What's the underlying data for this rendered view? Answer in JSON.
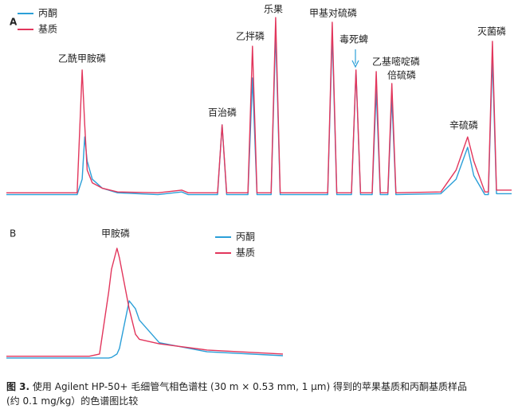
{
  "chart_data": [
    {
      "type": "line",
      "panel": "A",
      "annotations": [
        "乙酰甲胺磷",
        "百治磷",
        "乙拌磷",
        "乐果",
        "甲基对硫磷",
        "毒死蜱",
        "乙基嘧啶磷",
        "倍硫磷",
        "辛硫磷",
        "灭菌磷"
      ],
      "xlim": [
        0,
        100
      ],
      "ylim": [
        0,
        100
      ],
      "x": [
        0,
        14,
        15,
        15.5,
        16,
        17,
        19,
        22,
        30,
        34.7,
        36,
        41.8,
        42.7,
        43.6,
        47.8,
        48.7,
        49.6,
        52.4,
        53.3,
        54.2,
        63.6,
        64.5,
        65.4,
        68.3,
        69.2,
        70.1,
        72.4,
        73.2,
        74,
        75.5,
        76.3,
        77.1,
        86,
        89,
        91.3,
        92.5,
        94.7,
        95.4,
        96.2,
        97,
        100
      ],
      "series": [
        {
          "name": "丙酮",
          "color": "#2b9fd8",
          "values": [
            1.5,
            1.5,
            10,
            33.3,
            20,
            10,
            5,
            2.5,
            1.5,
            3,
            1.5,
            1.5,
            39.9,
            1.5,
            1.5,
            65.8,
            1.5,
            1.5,
            91.2,
            1.5,
            1.5,
            90.4,
            1.5,
            1.5,
            69.3,
            1.5,
            1.5,
            59.2,
            1.5,
            1.5,
            54.8,
            1.5,
            2,
            10,
            27.6,
            12,
            1.5,
            1.5,
            77.2,
            2,
            2
          ]
        },
        {
          "name": "基质",
          "color": "#e2365c",
          "values": [
            2.5,
            2.5,
            70.2,
            40,
            15,
            8,
            5,
            3,
            2.5,
            4,
            2.5,
            2.5,
            39.9,
            2.5,
            2.5,
            83.3,
            2.5,
            2.5,
            99.1,
            2.5,
            2.5,
            96.5,
            2.5,
            2.5,
            70.2,
            2.5,
            2.5,
            69.3,
            2.5,
            2.5,
            62.7,
            2.5,
            3,
            15,
            33.3,
            20,
            3,
            3,
            86,
            4,
            4
          ]
        }
      ]
    },
    {
      "type": "line",
      "panel": "B",
      "annotations": [
        "甲胺磷"
      ],
      "xlim": [
        0,
        100
      ],
      "ylim": [
        0,
        100
      ],
      "x": [
        0,
        30,
        33.7,
        37,
        38,
        40,
        40.9,
        44.4,
        46.7,
        48.1,
        55.3,
        72.6,
        100
      ],
      "series": [
        {
          "name": "丙酮",
          "color": "#2b9fd8",
          "values": [
            1.5,
            1.5,
            1.5,
            1.5,
            2,
            5,
            10,
            52.1,
            45,
            35,
            15,
            7,
            3.5
          ]
        },
        {
          "name": "基质",
          "color": "#e2365c",
          "values": [
            3,
            3,
            5,
            60,
            80,
            98.6,
            90,
            45,
            22.5,
            18,
            14,
            8.5,
            5
          ]
        }
      ]
    }
  ],
  "caption": {
    "label": "图 3.",
    "lines": [
      "使用 Agilent HP-50+ 毛细管气相色谱柱 (30 m × 0.53 mm, 1 µm) 得到的苹果基质和丙酮基质样品",
      "(约 0.1 mg/kg）的色谱图比较"
    ]
  }
}
